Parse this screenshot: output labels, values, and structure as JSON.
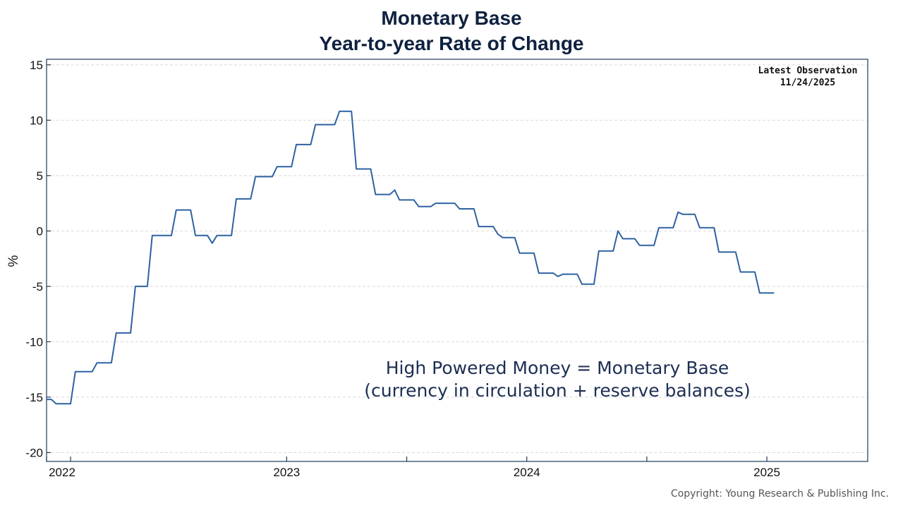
{
  "chart_data": {
    "type": "line",
    "title": [
      "Monetary Base",
      "Year-to-year Rate of Change"
    ],
    "ylabel": "%",
    "xlabel": "",
    "ylim": [
      -20.8,
      15.5
    ],
    "xlim": [
      2022.0,
      2025.42
    ],
    "yticks": [
      15,
      10,
      5,
      0,
      -5,
      -10,
      -15,
      -20
    ],
    "ytick_labels": [
      "15",
      "10",
      "5",
      "0",
      "-5",
      "-10",
      "-15",
      "-20"
    ],
    "xtick_labels": [
      {
        "label": "2022",
        "x": 2022.0
      },
      {
        "label": "2023",
        "x": 2023.0
      },
      {
        "label": "2024",
        "x": 2024.0
      },
      {
        "label": "2025",
        "x": 2025.0
      }
    ],
    "x_minor_ticks": [
      2022.1,
      2023.5,
      2024.5
    ],
    "grid": "horizontal-dashed",
    "latest_observation": {
      "label": "Latest Observation",
      "date": "11/24/2025"
    },
    "annotation": [
      "High Powered Money = Monetary Base",
      "(currency in circulation + reserve balances)"
    ],
    "series": [
      {
        "name": "Monetary Base YoY % change",
        "color": "#2e62a3",
        "points": [
          [
            2022.0,
            -15.2
          ],
          [
            2022.02,
            -15.2
          ],
          [
            2022.04,
            -15.6
          ],
          [
            2022.1,
            -15.6
          ],
          [
            2022.12,
            -12.7
          ],
          [
            2022.19,
            -12.7
          ],
          [
            2022.21,
            -11.9
          ],
          [
            2022.27,
            -11.9
          ],
          [
            2022.29,
            -9.2
          ],
          [
            2022.35,
            -9.2
          ],
          [
            2022.37,
            -5.0
          ],
          [
            2022.42,
            -5.0
          ],
          [
            2022.44,
            -0.4
          ],
          [
            2022.52,
            -0.4
          ],
          [
            2022.54,
            1.9
          ],
          [
            2022.6,
            1.9
          ],
          [
            2022.62,
            -0.4
          ],
          [
            2022.67,
            -0.4
          ],
          [
            2022.69,
            -1.1
          ],
          [
            2022.71,
            -0.4
          ],
          [
            2022.77,
            -0.4
          ],
          [
            2022.79,
            2.9
          ],
          [
            2022.85,
            2.9
          ],
          [
            2022.87,
            4.9
          ],
          [
            2022.94,
            4.9
          ],
          [
            2022.96,
            5.8
          ],
          [
            2023.02,
            5.8
          ],
          [
            2023.04,
            7.8
          ],
          [
            2023.1,
            7.8
          ],
          [
            2023.12,
            9.6
          ],
          [
            2023.2,
            9.6
          ],
          [
            2023.22,
            10.8
          ],
          [
            2023.27,
            10.8
          ],
          [
            2023.29,
            5.6
          ],
          [
            2023.35,
            5.6
          ],
          [
            2023.37,
            3.3
          ],
          [
            2023.43,
            3.3
          ],
          [
            2023.45,
            3.7
          ],
          [
            2023.47,
            2.8
          ],
          [
            2023.53,
            2.8
          ],
          [
            2023.55,
            2.2
          ],
          [
            2023.6,
            2.2
          ],
          [
            2023.62,
            2.5
          ],
          [
            2023.7,
            2.5
          ],
          [
            2023.72,
            2.0
          ],
          [
            2023.78,
            2.0
          ],
          [
            2023.8,
            0.4
          ],
          [
            2023.86,
            0.4
          ],
          [
            2023.88,
            -0.3
          ],
          [
            2023.9,
            -0.6
          ],
          [
            2023.95,
            -0.6
          ],
          [
            2023.97,
            -2.0
          ],
          [
            2024.03,
            -2.0
          ],
          [
            2024.05,
            -3.8
          ],
          [
            2024.11,
            -3.8
          ],
          [
            2024.13,
            -4.1
          ],
          [
            2024.15,
            -3.9
          ],
          [
            2024.21,
            -3.9
          ],
          [
            2024.23,
            -4.8
          ],
          [
            2024.28,
            -4.8
          ],
          [
            2024.3,
            -1.8
          ],
          [
            2024.36,
            -1.8
          ],
          [
            2024.38,
            0.0
          ],
          [
            2024.4,
            -0.7
          ],
          [
            2024.45,
            -0.7
          ],
          [
            2024.47,
            -1.3
          ],
          [
            2024.53,
            -1.3
          ],
          [
            2024.55,
            0.3
          ],
          [
            2024.61,
            0.3
          ],
          [
            2024.63,
            1.7
          ],
          [
            2024.65,
            1.5
          ],
          [
            2024.7,
            1.5
          ],
          [
            2024.72,
            0.3
          ],
          [
            2024.78,
            0.3
          ],
          [
            2024.8,
            -1.9
          ],
          [
            2024.87,
            -1.9
          ],
          [
            2024.89,
            -3.7
          ],
          [
            2024.95,
            -3.7
          ],
          [
            2024.97,
            -5.6
          ],
          [
            2025.03,
            -5.6
          ]
        ]
      }
    ]
  },
  "footer": {
    "copyright": "Copyright: Young Research & Publishing Inc."
  }
}
